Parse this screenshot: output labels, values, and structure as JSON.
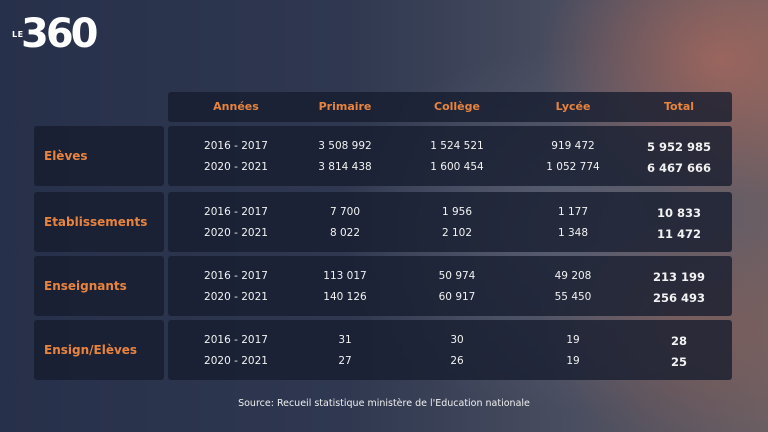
{
  "logo": {
    "prefix": "LE",
    "number": "360"
  },
  "headers": [
    "Années",
    "Primaire",
    "Collège",
    "Lycée",
    "Total"
  ],
  "rows": [
    {
      "label": "Elèves",
      "lines": [
        {
          "year": "2016 - 2017",
          "primaire": "3 508 992",
          "college": "1 524 521",
          "lycee": "919 472",
          "total": "5 952 985"
        },
        {
          "year": "2020 - 2021",
          "primaire": "3 814 438",
          "college": "1 600 454",
          "lycee": "1 052 774",
          "total": "6 467 666"
        }
      ]
    },
    {
      "label": "Etablissements",
      "lines": [
        {
          "year": "2016 - 2017",
          "primaire": "7 700",
          "college": "1 956",
          "lycee": "1 177",
          "total": "10 833"
        },
        {
          "year": "2020 - 2021",
          "primaire": "8 022",
          "college": "2 102",
          "lycee": "1 348",
          "total": "11 472"
        }
      ]
    },
    {
      "label": "Enseignants",
      "lines": [
        {
          "year": "2016 - 2017",
          "primaire": "113 017",
          "college": "50 974",
          "lycee": "49 208",
          "total": "213 199"
        },
        {
          "year": "2020 - 2021",
          "primaire": "140 126",
          "college": "60 917",
          "lycee": "55 450",
          "total": "256 493"
        }
      ]
    },
    {
      "label": "Ensign/Elèves",
      "lines": [
        {
          "year": "2016 - 2017",
          "primaire": "31",
          "college": "30",
          "lycee": "19",
          "total": "28"
        },
        {
          "year": "2020 - 2021",
          "primaire": "27",
          "college": "26",
          "lycee": "19",
          "total": "25"
        }
      ]
    }
  ],
  "source": "Source: Recueil statistique ministère de l'Education nationale",
  "colors": {
    "accent": "#e8843f",
    "panel": "#161c2e"
  }
}
